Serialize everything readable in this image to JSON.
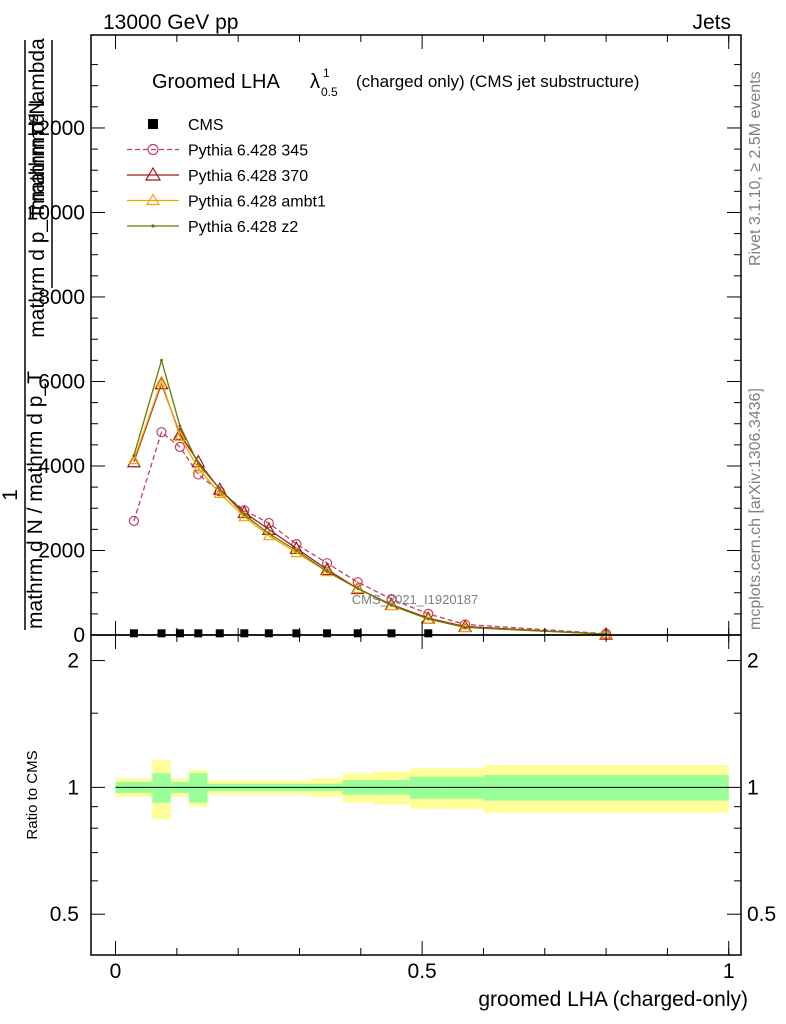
{
  "header": {
    "left": "13000 GeV pp",
    "right": "Jets"
  },
  "side_labels": {
    "rivet": "Rivet 3.1.10, ≥ 2.5M events",
    "mcplots": "mcplots.cern.ch [arXiv:1306.3436]"
  },
  "watermark": "CMS_2021_I1920187",
  "colors": {
    "cms": "#000000",
    "p345": "#c04060",
    "p370": "#9b1b1b",
    "ambt1": "#f4a300",
    "z2": "#6b7a00",
    "band_stat": "#99ff99",
    "band_tot": "#ffff99"
  },
  "chart_data": [
    {
      "type": "line",
      "title_main": "Groomed LHA",
      "title_symbol": "λ",
      "title_sup": "1",
      "title_sub": "0.5",
      "title_rest": "(charged only) (CMS jet substructure)",
      "ylabel_num_a": "mathrm d²N",
      "ylabel_den_a": "mathrm d p_T mathrm d lambda",
      "ylabel_num_b": "1",
      "ylabel_den_b": "mathrm d N / mathrm d p_T",
      "xlim": [
        -0.04,
        1.02
      ],
      "ylim": [
        0,
        14200
      ],
      "yticks": [
        0,
        2000,
        4000,
        6000,
        8000,
        10000,
        12000
      ],
      "ytick_labels": [
        "0",
        "2000",
        "4000",
        "6000",
        "8000",
        "10000",
        "12000"
      ],
      "legend": [
        "CMS",
        "Pythia 6.428 345",
        "Pythia 6.428 370",
        "Pythia 6.428 ambt1",
        "Pythia 6.428 z2"
      ],
      "cms": {
        "name": "CMS",
        "x": [
          0.03,
          0.075,
          0.105,
          0.135,
          0.17,
          0.21,
          0.25,
          0.295,
          0.345,
          0.395,
          0.45,
          0.51
        ],
        "y": [
          40,
          40,
          40,
          40,
          40,
          40,
          40,
          40,
          40,
          40,
          40,
          40
        ]
      },
      "series": [
        {
          "name": "Pythia 6.428 345",
          "x": [
            0.03,
            0.075,
            0.105,
            0.135,
            0.17,
            0.21,
            0.25,
            0.295,
            0.345,
            0.395,
            0.45,
            0.51,
            0.57,
            0.8
          ],
          "y": [
            2700,
            4800,
            4450,
            3800,
            3400,
            2950,
            2650,
            2150,
            1700,
            1250,
            850,
            500,
            250,
            30
          ]
        },
        {
          "name": "Pythia 6.428 370",
          "x": [
            0.03,
            0.075,
            0.105,
            0.135,
            0.17,
            0.21,
            0.25,
            0.295,
            0.345,
            0.395,
            0.45,
            0.51,
            0.57,
            0.8
          ],
          "y": [
            4100,
            5950,
            4750,
            4100,
            3450,
            2900,
            2500,
            2050,
            1550,
            1100,
            720,
            400,
            200,
            20
          ]
        },
        {
          "name": "Pythia 6.428 ambt1",
          "x": [
            0.03,
            0.075,
            0.105,
            0.135,
            0.17,
            0.21,
            0.25,
            0.295,
            0.345,
            0.395,
            0.45,
            0.51,
            0.57,
            0.8
          ],
          "y": [
            4150,
            6000,
            4700,
            3950,
            3350,
            2800,
            2350,
            1950,
            1500,
            1100,
            700,
            380,
            180,
            20
          ]
        },
        {
          "name": "Pythia 6.428 z2",
          "x": [
            0.03,
            0.075,
            0.105,
            0.135,
            0.17,
            0.21,
            0.25,
            0.295,
            0.345,
            0.395,
            0.45,
            0.51,
            0.57,
            0.8
          ],
          "y": [
            4250,
            6500,
            4950,
            4050,
            3450,
            2850,
            2400,
            2000,
            1500,
            1100,
            700,
            380,
            180,
            20
          ]
        }
      ]
    },
    {
      "type": "area",
      "xlabel": "groomed LHA (charged-only)",
      "ylabel": "Ratio to CMS",
      "xlim": [
        -0.04,
        1.02
      ],
      "ylim": [
        0.4,
        2.3
      ],
      "log_scale_y": true,
      "xticks": [
        0,
        0.5,
        1
      ],
      "xtick_labels": [
        "0",
        "0.5",
        "1"
      ],
      "yticks": [
        0.5,
        1,
        2
      ],
      "ytick_labels": [
        "0.5",
        "1",
        "2"
      ],
      "bins": [
        {
          "lo": 0.0,
          "hi": 0.06,
          "stat": 0.03,
          "tot": 0.05
        },
        {
          "lo": 0.06,
          "hi": 0.09,
          "stat": 0.08,
          "tot": 0.16
        },
        {
          "lo": 0.09,
          "hi": 0.12,
          "stat": 0.03,
          "tot": 0.05
        },
        {
          "lo": 0.12,
          "hi": 0.15,
          "stat": 0.08,
          "tot": 0.1
        },
        {
          "lo": 0.15,
          "hi": 0.19,
          "stat": 0.02,
          "tot": 0.04
        },
        {
          "lo": 0.19,
          "hi": 0.23,
          "stat": 0.02,
          "tot": 0.04
        },
        {
          "lo": 0.23,
          "hi": 0.27,
          "stat": 0.02,
          "tot": 0.04
        },
        {
          "lo": 0.27,
          "hi": 0.32,
          "stat": 0.02,
          "tot": 0.04
        },
        {
          "lo": 0.32,
          "hi": 0.37,
          "stat": 0.02,
          "tot": 0.05
        },
        {
          "lo": 0.37,
          "hi": 0.42,
          "stat": 0.04,
          "tot": 0.08
        },
        {
          "lo": 0.42,
          "hi": 0.48,
          "stat": 0.04,
          "tot": 0.09
        },
        {
          "lo": 0.48,
          "hi": 0.54,
          "stat": 0.06,
          "tot": 0.11
        },
        {
          "lo": 0.54,
          "hi": 0.6,
          "stat": 0.06,
          "tot": 0.11
        },
        {
          "lo": 0.6,
          "hi": 1.0,
          "stat": 0.07,
          "tot": 0.13
        }
      ]
    }
  ]
}
